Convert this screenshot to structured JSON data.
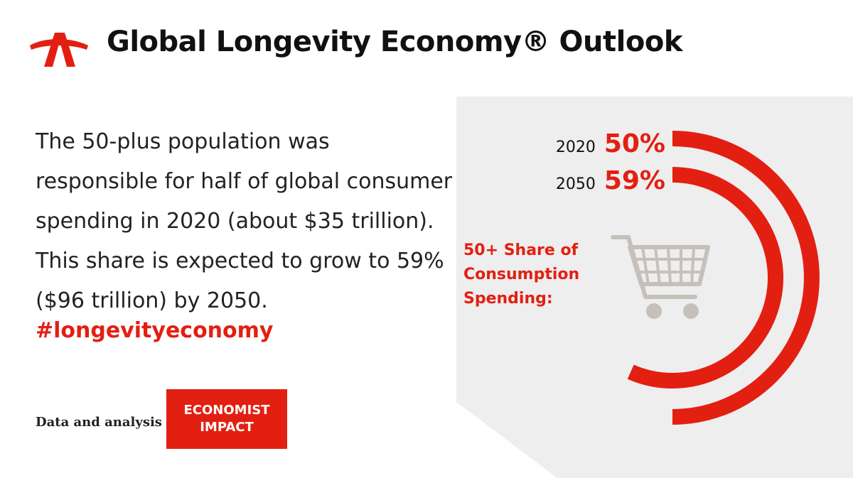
{
  "header": {
    "logo_icon": "aarp-logo-icon",
    "title": "Global Longevity Economy® Outlook"
  },
  "main": {
    "body_text": "The 50-plus population was responsible for half of global consumer spending in 2020 (about $35 trillion). This share is expected to grow to 59% ($96 trillion) by 2050.",
    "hashtag": "#longevityeconomy"
  },
  "credit": {
    "label": "Data and analysis by",
    "box_line1": "ECONOMIST",
    "box_line2": "IMPACT"
  },
  "colors": {
    "accent": "#e31f12",
    "panel": "#eeeeee",
    "cart": "#c6c0bb"
  },
  "chart_data": {
    "type": "radial-bar",
    "title": "50+ Share of Consumption Spending:",
    "icon": "shopping-cart-icon",
    "unit": "%",
    "categories": [
      "2020",
      "2050"
    ],
    "values": [
      50,
      59
    ],
    "labels": [
      "50%",
      "59%"
    ]
  }
}
